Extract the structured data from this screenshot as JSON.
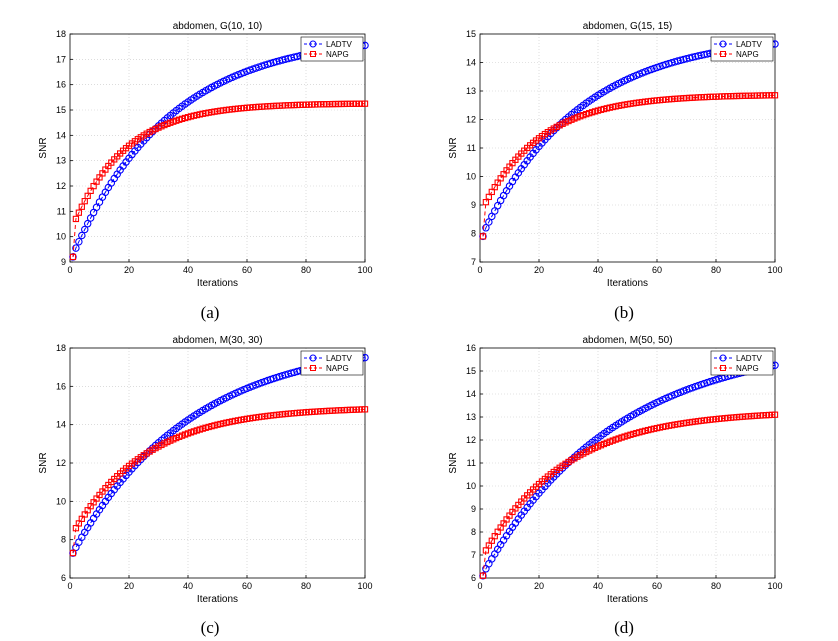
{
  "figure": {
    "captions": [
      "(a)",
      "(b)",
      "(c)",
      "(d)"
    ]
  },
  "colors": {
    "ladtv": "#0000ff",
    "napg": "#ff0000",
    "axis": "#000000",
    "grid": "#c8c8c8"
  },
  "chart_data": [
    {
      "type": "line",
      "title": "abdomen, G(10, 10)",
      "xlabel": "Iterations",
      "ylabel": "SNR",
      "xlim": [
        0,
        100
      ],
      "ylim": [
        9,
        18
      ],
      "xticks": [
        0,
        20,
        40,
        60,
        80,
        100
      ],
      "yticks": [
        9,
        10,
        11,
        12,
        13,
        14,
        15,
        16,
        17,
        18
      ],
      "grid": true,
      "legend": "top-right",
      "x": [
        1,
        100
      ],
      "series": [
        {
          "name": "LADTV",
          "marker": "circle",
          "start": 9.2,
          "first": 9.55,
          "end": 17.55,
          "tau": 33
        },
        {
          "name": "NAPG",
          "marker": "square",
          "start": 9.2,
          "first": 10.7,
          "end": 15.25,
          "tau": 18
        }
      ]
    },
    {
      "type": "line",
      "title": "abdomen, G(15, 15)",
      "xlabel": "Iterations",
      "ylabel": "SNR",
      "xlim": [
        0,
        100
      ],
      "ylim": [
        7,
        15
      ],
      "xticks": [
        0,
        20,
        40,
        60,
        80,
        100
      ],
      "yticks": [
        7,
        8,
        9,
        10,
        11,
        12,
        13,
        14,
        15
      ],
      "grid": true,
      "legend": "top-right",
      "x": [
        1,
        100
      ],
      "series": [
        {
          "name": "LADTV",
          "marker": "circle",
          "start": 7.9,
          "first": 8.2,
          "end": 14.65,
          "tau": 33
        },
        {
          "name": "NAPG",
          "marker": "square",
          "start": 7.9,
          "first": 9.1,
          "end": 12.85,
          "tau": 20
        }
      ]
    },
    {
      "type": "line",
      "title": "abdomen, M(30, 30)",
      "xlabel": "Iterations",
      "ylabel": "SNR",
      "xlim": [
        0,
        100
      ],
      "ylim": [
        6,
        18
      ],
      "xticks": [
        0,
        20,
        40,
        60,
        80,
        100
      ],
      "yticks": [
        6,
        8,
        10,
        12,
        14,
        16,
        18
      ],
      "grid": true,
      "legend": "top-right",
      "x": [
        1,
        100
      ],
      "series": [
        {
          "name": "LADTV",
          "marker": "circle",
          "start": 7.3,
          "first": 7.6,
          "end": 17.5,
          "tau": 40
        },
        {
          "name": "NAPG",
          "marker": "square",
          "start": 7.3,
          "first": 8.6,
          "end": 14.8,
          "tau": 25
        }
      ]
    },
    {
      "type": "line",
      "title": "abdomen, M(50, 50)",
      "xlabel": "Iterations",
      "ylabel": "SNR",
      "xlim": [
        0,
        100
      ],
      "ylim": [
        6,
        16
      ],
      "xticks": [
        0,
        20,
        40,
        60,
        80,
        100
      ],
      "yticks": [
        6,
        7,
        8,
        9,
        10,
        11,
        12,
        13,
        14,
        15,
        16
      ],
      "grid": true,
      "legend": "top-right",
      "x": [
        1,
        100
      ],
      "series": [
        {
          "name": "LADTV",
          "marker": "circle",
          "start": 6.1,
          "first": 6.4,
          "end": 15.25,
          "tau": 45
        },
        {
          "name": "NAPG",
          "marker": "square",
          "start": 6.1,
          "first": 7.2,
          "end": 13.1,
          "tau": 28
        }
      ]
    }
  ]
}
